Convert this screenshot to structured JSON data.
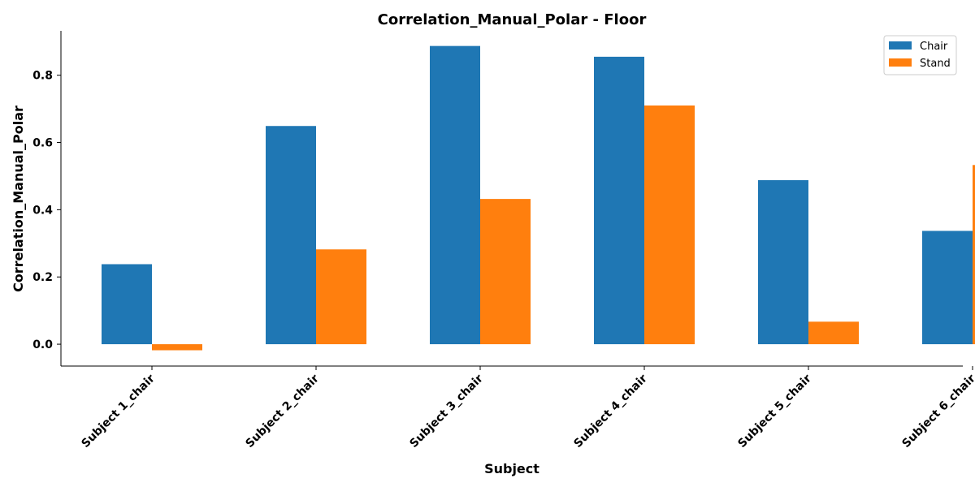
{
  "chart_data": {
    "type": "bar",
    "title": "Correlation_Manual_Polar - Floor",
    "xlabel": "Subject",
    "ylabel": "Correlation_Manual_Polar",
    "categories": [
      "Subject 1_chair",
      "Subject 2_chair",
      "Subject 3_chair",
      "Subject 4_chair",
      "Subject 5_chair",
      "Subject 6_chair"
    ],
    "series": [
      {
        "name": "Chair",
        "color": "#1f77b4",
        "values": [
          0.238,
          0.649,
          0.887,
          0.855,
          0.488,
          0.337
        ]
      },
      {
        "name": "Stand",
        "color": "#ff7f0e",
        "values": [
          -0.018,
          0.282,
          0.432,
          0.71,
          0.067,
          0.533
        ]
      }
    ],
    "ylim": [
      -0.065,
      0.932
    ],
    "yticks": [
      "0.0",
      "0.2",
      "0.4",
      "0.6",
      "0.8"
    ],
    "grid": false,
    "legend_position": "top-right"
  }
}
